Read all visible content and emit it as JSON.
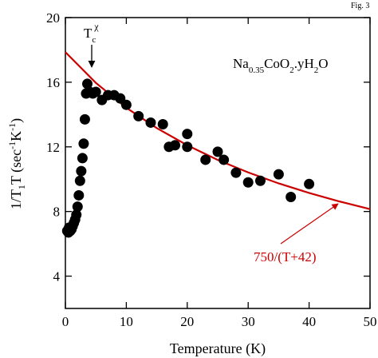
{
  "chart_data": {
    "type": "scatter",
    "figure_label": "Fig. 3",
    "xlabel": "Temperature (K)",
    "ylabel_parts": [
      "1/T",
      "1",
      "T  (sec",
      "-1",
      "K",
      "-1",
      ")"
    ],
    "tc_label_parts": [
      "T",
      "c",
      "χ"
    ],
    "compound_parts": [
      "Na",
      "0.35",
      "CoO",
      "2",
      ".yH",
      "2",
      "O"
    ],
    "xlim": [
      0,
      50
    ],
    "ylim": [
      2,
      20
    ],
    "xticks": [
      0,
      10,
      20,
      30,
      40,
      50
    ],
    "yticks": [
      4,
      8,
      12,
      16,
      20
    ],
    "series": [
      {
        "name": "data",
        "color": "#000000",
        "x": [
          0.3,
          0.5,
          0.6,
          0.8,
          1.0,
          1.2,
          1.4,
          1.6,
          1.8,
          2.0,
          2.2,
          2.4,
          2.6,
          2.8,
          3.0,
          3.2,
          3.4,
          3.6,
          4.0,
          4.5,
          5.0,
          6.0,
          7.0,
          8.0,
          9.0,
          10.0,
          12.0,
          14.0,
          16.0,
          17.0,
          18.0,
          20.0,
          20.0,
          23.0,
          25.0,
          26.0,
          28.0,
          30.0,
          32.0,
          35.0,
          37.0,
          40.0
        ],
        "values": [
          6.8,
          6.7,
          7.0,
          6.8,
          6.9,
          7.1,
          7.3,
          7.5,
          7.8,
          8.3,
          9.0,
          9.9,
          10.5,
          11.3,
          12.2,
          13.7,
          15.3,
          15.9,
          15.4,
          15.3,
          15.4,
          14.9,
          15.2,
          15.2,
          15.0,
          14.6,
          13.9,
          13.5,
          13.4,
          12.0,
          12.1,
          12.8,
          12.0,
          11.2,
          11.7,
          11.2,
          10.4,
          9.8,
          9.9,
          10.3,
          8.9,
          9.7
        ]
      },
      {
        "name": "750/(T+42)",
        "color": "#cc0000",
        "x": [
          0,
          5,
          10,
          15,
          20,
          25,
          30,
          35,
          40,
          45,
          50
        ],
        "values": [
          17.86,
          15.96,
          14.42,
          13.16,
          12.1,
          11.19,
          10.42,
          9.74,
          9.15,
          8.62,
          8.15
        ]
      }
    ]
  }
}
